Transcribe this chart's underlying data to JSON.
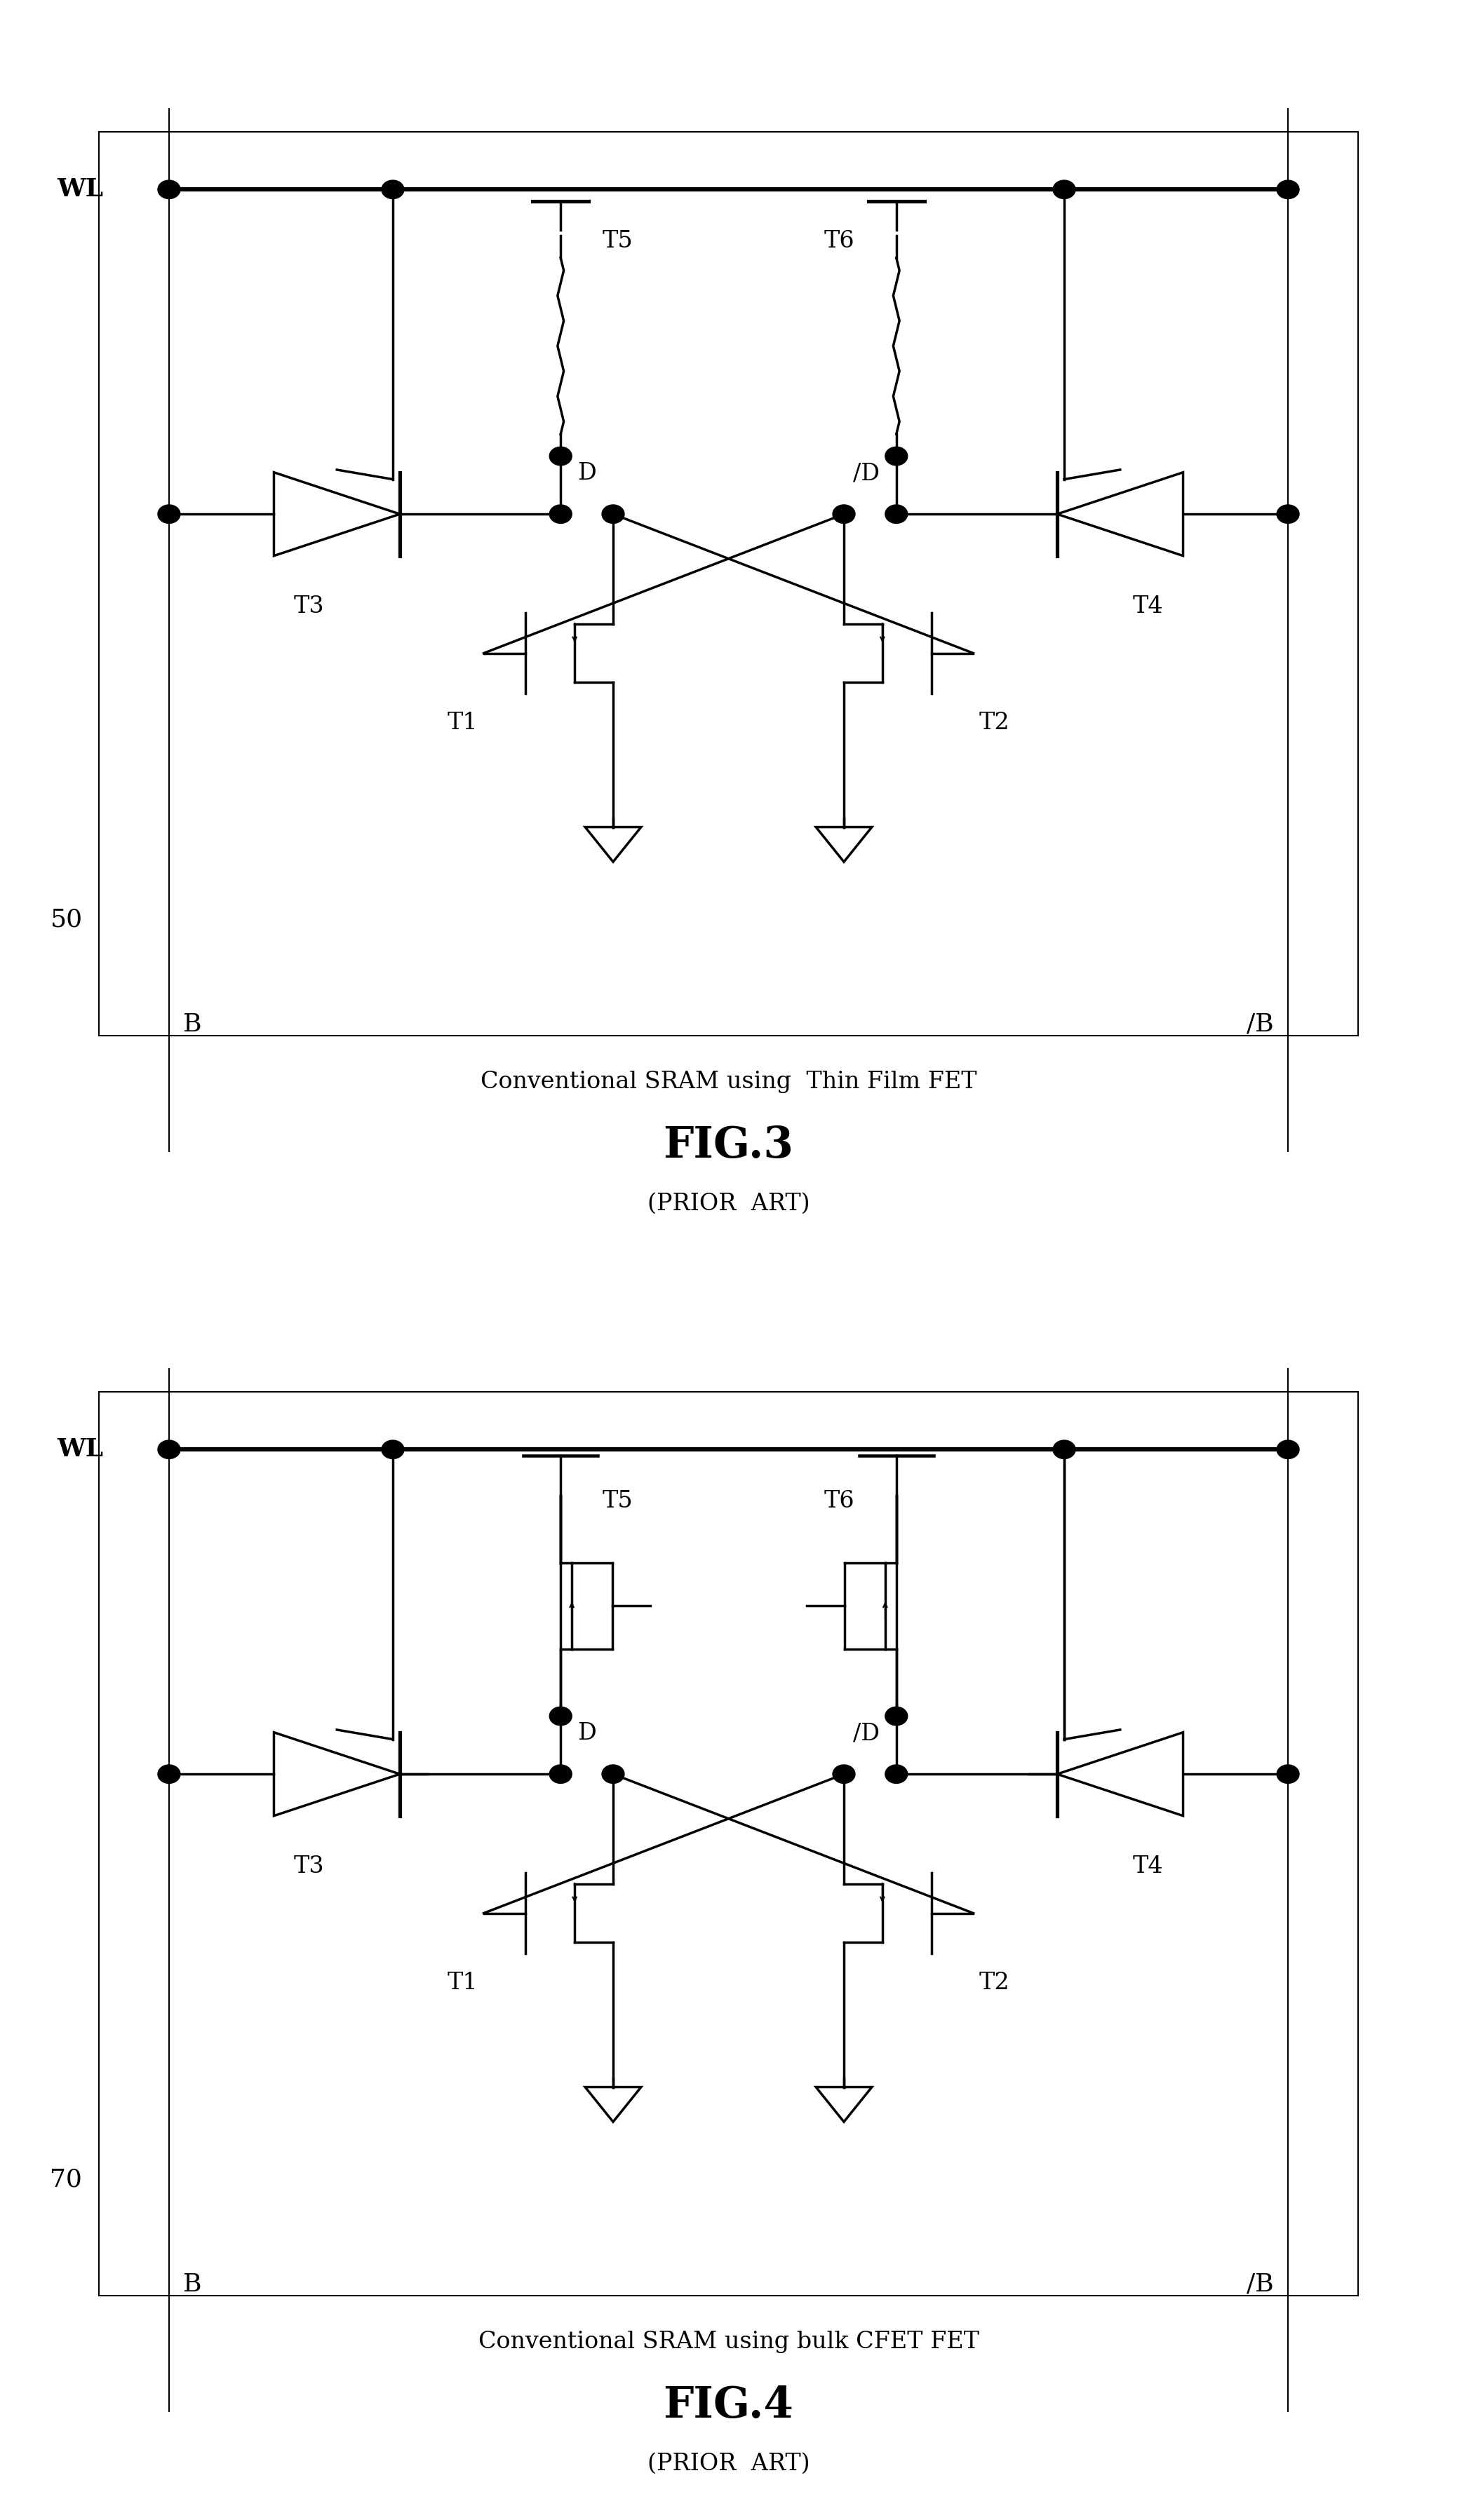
{
  "fig3_title": "Conventional SRAM using  Thin Film FET",
  "fig3_label": "FIG.3",
  "fig3_sublabel": "(PRIOR  ART)",
  "fig3_number": "50",
  "fig4_title": "Conventional SRAM using bulk CFET FET",
  "fig4_label": "FIG.4",
  "fig4_sublabel": "(PRIOR  ART)",
  "fig4_number": "70",
  "bg_color": "#ffffff",
  "line_color": "#000000",
  "lw_main": 2.5,
  "lw_thin": 1.5,
  "lw_border": 1.5
}
